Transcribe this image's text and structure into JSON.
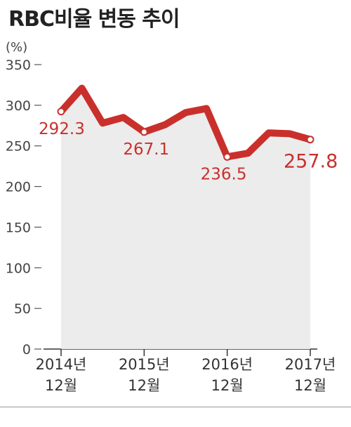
{
  "chart_data": {
    "type": "area",
    "title": "RBC비율 변동 추이",
    "unit_label": "(%)",
    "ylim": [
      0,
      350
    ],
    "yticks": [
      0,
      50,
      100,
      150,
      200,
      250,
      300,
      350
    ],
    "series": [
      {
        "values": [
          292.3,
          321,
          278,
          285,
          267.1,
          276,
          291,
          296,
          236.5,
          241,
          266,
          265,
          257.8
        ]
      }
    ],
    "x_ticks": [
      {
        "index": 0,
        "year": "2014년",
        "month": "12월"
      },
      {
        "index": 4,
        "year": "2015년",
        "month": "12월"
      },
      {
        "index": 8,
        "year": "2016년",
        "month": "12월"
      },
      {
        "index": 12,
        "year": "2017년",
        "month": "12월"
      }
    ],
    "data_labels": [
      {
        "index": 0,
        "text": "292.3"
      },
      {
        "index": 4,
        "text": "267.1"
      },
      {
        "index": 8,
        "text": "236.5"
      },
      {
        "index": 12,
        "text": "257.8"
      }
    ],
    "colors": {
      "line": "#c9302c",
      "area": "#ececec",
      "axis": "#555555"
    }
  }
}
